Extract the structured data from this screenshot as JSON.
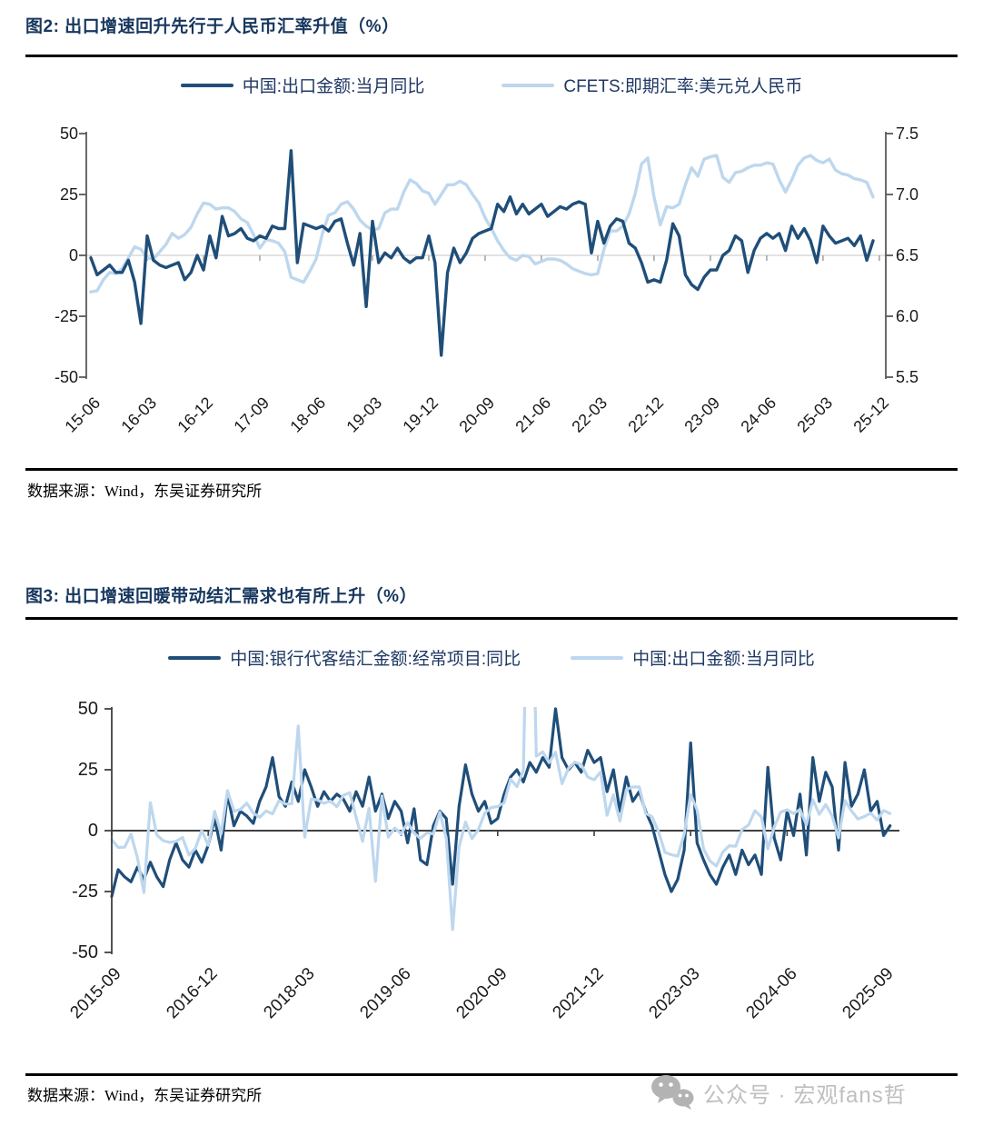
{
  "watermark": {
    "text": "公众号 · 宏观fans哲"
  },
  "figure2": {
    "title": "图2:  出口增速回升先行于人民币汇率升值（%）",
    "legend": [
      {
        "label": "中国:出口金额:当月同比",
        "color": "#1F4E79"
      },
      {
        "label": "CFETS:即期汇率:美元兑人民币",
        "color": "#BDD7EE"
      }
    ],
    "source": "数据来源：Wind，东吴证券研究所",
    "chart_data": {
      "type": "line",
      "x_start": "2015-06",
      "x_frequency": "monthly",
      "x_tick_labels": [
        "15-06",
        "16-03",
        "16-12",
        "17-09",
        "18-06",
        "19-03",
        "19-12",
        "20-09",
        "21-06",
        "22-03",
        "22-12",
        "23-09",
        "24-06",
        "25-03",
        "25-12"
      ],
      "left_axis": {
        "range": [
          -50,
          50
        ],
        "tick_labels": [
          "50",
          "25",
          "0",
          "-25",
          "-50"
        ],
        "tick_values": [
          50,
          25,
          0,
          -25,
          -50
        ]
      },
      "right_axis": {
        "range": [
          5.5,
          7.5
        ],
        "tick_labels": [
          "7.5",
          "7.0",
          "6.5",
          "6.0",
          "5.5"
        ],
        "tick_values": [
          7.5,
          7.0,
          6.5,
          6.0,
          5.5
        ]
      },
      "series": [
        {
          "name": "中国:出口金额:当月同比",
          "axis": "left",
          "color": "#1F4E79",
          "values": [
            -1,
            -8,
            -6,
            -4,
            -7,
            -7,
            -2,
            -11,
            -28,
            8,
            -2,
            -4,
            -5,
            -4,
            -3,
            -10,
            -7,
            0,
            -6,
            8,
            -1,
            16,
            8,
            9,
            11,
            7,
            6,
            8,
            7,
            12,
            11,
            11,
            43,
            -3,
            13,
            12,
            11,
            12,
            10,
            14,
            15,
            5,
            -4,
            9,
            -21,
            14,
            -3,
            1,
            -1,
            3,
            -1,
            -3,
            -1,
            -1,
            8,
            -3,
            -41,
            -7,
            3,
            -3,
            1,
            7,
            9,
            10,
            11,
            21,
            18,
            24,
            17,
            21,
            17,
            19,
            21,
            16,
            18,
            20,
            19,
            21,
            22,
            21,
            1,
            14,
            5,
            12,
            15,
            14,
            5,
            3,
            -3,
            -11,
            -10,
            -11,
            -2,
            13,
            8,
            -8,
            -12,
            -14,
            -9,
            -6,
            -6,
            0,
            2,
            8,
            6,
            -7,
            2,
            7,
            9,
            7,
            9,
            2,
            12,
            7,
            11,
            6,
            -3,
            12,
            8,
            5,
            6,
            7,
            4,
            8,
            -2,
            6
          ]
        },
        {
          "name": "CFETS:即期汇率:美元兑人民币",
          "axis": "right",
          "color": "#BDD7EE",
          "values": [
            6.2,
            6.21,
            6.3,
            6.36,
            6.35,
            6.39,
            6.48,
            6.57,
            6.55,
            6.48,
            6.47,
            6.53,
            6.59,
            6.68,
            6.64,
            6.67,
            6.73,
            6.84,
            6.93,
            6.92,
            6.88,
            6.89,
            6.89,
            6.86,
            6.8,
            6.77,
            6.67,
            6.56,
            6.63,
            6.62,
            6.6,
            6.53,
            6.32,
            6.3,
            6.28,
            6.37,
            6.47,
            6.68,
            6.83,
            6.85,
            6.92,
            6.94,
            6.88,
            6.79,
            6.74,
            6.71,
            6.72,
            6.85,
            6.88,
            6.88,
            7.02,
            7.12,
            7.09,
            7.03,
            7.01,
            6.92,
            7.0,
            7.08,
            7.08,
            7.11,
            7.08,
            7.0,
            6.93,
            6.81,
            6.72,
            6.62,
            6.54,
            6.48,
            6.46,
            6.5,
            6.49,
            6.43,
            6.45,
            6.47,
            6.47,
            6.46,
            6.43,
            6.39,
            6.37,
            6.35,
            6.34,
            6.35,
            6.55,
            6.7,
            6.7,
            6.74,
            6.84,
            7.01,
            7.25,
            7.3,
            6.98,
            6.75,
            6.9,
            6.89,
            6.92,
            7.08,
            7.22,
            7.15,
            7.29,
            7.31,
            7.32,
            7.14,
            7.1,
            7.18,
            7.19,
            7.22,
            7.24,
            7.24,
            7.26,
            7.25,
            7.12,
            7.02,
            7.12,
            7.24,
            7.3,
            7.32,
            7.28,
            7.26,
            7.29,
            7.2,
            7.17,
            7.16,
            7.13,
            7.12,
            7.1,
            6.98
          ]
        }
      ]
    }
  },
  "figure3": {
    "title": "图3:  出口增速回暖带动结汇需求也有所上升（%）",
    "legend": [
      {
        "label": "中国:银行代客结汇金额:经常项目:同比",
        "color": "#1F4E79"
      },
      {
        "label": "中国:出口金额:当月同比",
        "color": "#BDD7EE"
      }
    ],
    "source": "数据来源：Wind，东吴证券研究所",
    "chart_data": {
      "type": "line",
      "x_start": "2015-09",
      "x_frequency": "monthly",
      "x_tick_labels": [
        "2015-09",
        "2016-12",
        "2018-03",
        "2019-06",
        "2020-09",
        "2021-12",
        "2023-03",
        "2024-06",
        "2025-09"
      ],
      "left_axis": {
        "range": [
          -50,
          50
        ],
        "tick_labels": [
          "50",
          "25",
          "0",
          "-25",
          "-50"
        ],
        "tick_values": [
          50,
          25,
          0,
          -25,
          -50
        ]
      },
      "series": [
        {
          "name": "中国:银行代客结汇金额:经常项目:同比",
          "axis": "left",
          "color": "#1F4E79",
          "values": [
            -27,
            -16,
            -19,
            -21,
            -15,
            -20,
            -13,
            -19,
            -23,
            -12,
            -5,
            -12,
            -15,
            -8,
            -13,
            -6,
            5,
            -8,
            15,
            2,
            8,
            6,
            3,
            12,
            18,
            30,
            14,
            10,
            20,
            12,
            25,
            18,
            10,
            16,
            12,
            15,
            13,
            8,
            16,
            10,
            22,
            8,
            15,
            5,
            12,
            8,
            -5,
            9,
            -12,
            -14,
            2,
            8,
            5,
            -22,
            10,
            27,
            15,
            8,
            12,
            3,
            5,
            15,
            22,
            25,
            20,
            28,
            24,
            30,
            26,
            50,
            30,
            25,
            28,
            24,
            33,
            28,
            30,
            16,
            25,
            8,
            22,
            12,
            16,
            8,
            2,
            -8,
            -18,
            -25,
            -20,
            -8,
            36,
            -5,
            -12,
            -18,
            -22,
            -15,
            -10,
            -18,
            -8,
            -14,
            -10,
            -18,
            26,
            -3,
            -12,
            8,
            -2,
            15,
            -10,
            30,
            12,
            24,
            18,
            -8,
            28,
            10,
            15,
            25,
            8,
            12,
            -2,
            2
          ]
        },
        {
          "name": "中国:出口金额:当月同比",
          "axis": "left",
          "color": "#BDD7EE",
          "values": [
            -3.7,
            -6.9,
            -6.8,
            -1.4,
            -11.2,
            -25.4,
            11.5,
            -1.8,
            -4.1,
            -4.8,
            -4.4,
            -2.8,
            -10,
            -7.3,
            0.1,
            -6.1,
            7.9,
            -1.3,
            16.4,
            8,
            8.7,
            11.3,
            7.2,
            5.5,
            8.1,
            6.9,
            12.3,
            10.9,
            11.1,
            43,
            -2.7,
            12.9,
            12.6,
            11.2,
            12.2,
            9.8,
            14.5,
            15.6,
            5.4,
            -4.4,
            9.1,
            -20.8,
            14.2,
            -2.7,
            1.1,
            -1.3,
            3.3,
            -1,
            -3.2,
            -0.9,
            -1.3,
            7.6,
            -3,
            -40.6,
            -6.6,
            3.5,
            -3.3,
            0.5,
            7.2,
            9.5,
            9.9,
            11.4,
            21.1,
            18.1,
            24.8,
            155,
            30.6,
            32.3,
            27.9,
            32.2,
            19.3,
            25.6,
            28.1,
            27.1,
            22,
            20.9,
            24.1,
            6.3,
            14.7,
            3.9,
            16.9,
            17.9,
            18,
            7.1,
            5.7,
            -0.3,
            -8.9,
            -9.9,
            -10.5,
            -1.3,
            14.8,
            8.5,
            -7.5,
            -12.4,
            -14.5,
            -8.8,
            -6.2,
            -6.4,
            0.5,
            2.3,
            8.2,
            5.6,
            -7.5,
            1.5,
            7.6,
            8.6,
            7,
            8.7,
            2.4,
            12.7,
            6.7,
            10.7,
            6,
            -3,
            12.4,
            8.1,
            4.8,
            5.8,
            7.2,
            4.4,
            8.3,
            7
          ]
        }
      ]
    }
  }
}
